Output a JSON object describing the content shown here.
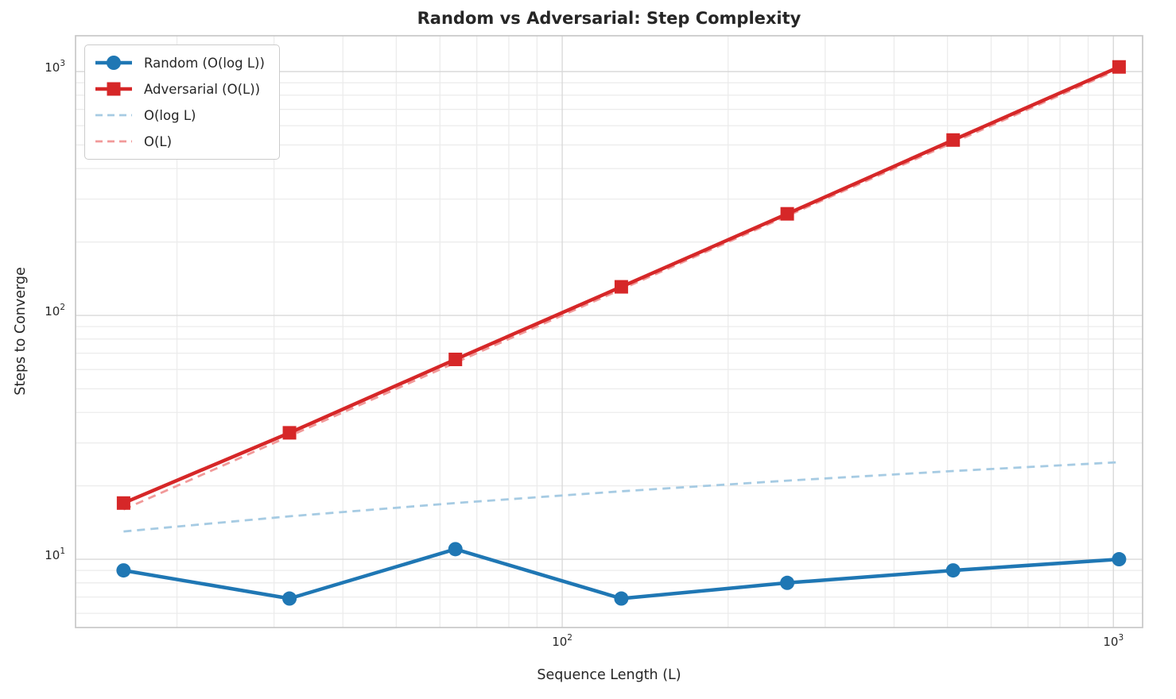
{
  "chart_data": {
    "type": "line",
    "title": "Random vs Adversarial: Step Complexity",
    "xlabel": "Sequence Length (L)",
    "ylabel": "Steps to Converge",
    "x_scale": "log",
    "y_scale": "log",
    "grid": "both-major-and-minor",
    "legend_position": "upper-left",
    "x": [
      16,
      32,
      64,
      128,
      256,
      512,
      1024
    ],
    "series": [
      {
        "name": "Random (O(log L))",
        "values": [
          9.0,
          6.9,
          11.0,
          6.9,
          8.0,
          9.0,
          10.0
        ],
        "color": "#1f77b4",
        "line_style": "solid",
        "marker": "circle"
      },
      {
        "name": "Adversarial (O(L))",
        "values": [
          17,
          33,
          66,
          131,
          261,
          524,
          1045
        ],
        "color": "#d62728",
        "line_style": "solid",
        "marker": "square"
      },
      {
        "name": "O(log L)",
        "values": [
          13,
          15,
          17,
          19,
          21,
          23,
          25
        ],
        "color": "#a6cbe3",
        "line_style": "dashed",
        "marker": "none"
      },
      {
        "name": "O(L)",
        "values": [
          16,
          32,
          64,
          128,
          256,
          512,
          1024
        ],
        "color": "#f19999",
        "line_style": "dashed",
        "marker": "none"
      }
    ],
    "xlim_log10": [
      1.117,
      3.053
    ],
    "ylim_log10": [
      0.72,
      3.147
    ],
    "x_ticks": [
      {
        "base": "10",
        "exp": "2",
        "value": 100
      },
      {
        "base": "10",
        "exp": "3",
        "value": 1000
      }
    ],
    "y_ticks": [
      {
        "base": "10",
        "exp": "1",
        "value": 10
      },
      {
        "base": "10",
        "exp": "2",
        "value": 100
      },
      {
        "base": "10",
        "exp": "3",
        "value": 1000
      }
    ]
  }
}
